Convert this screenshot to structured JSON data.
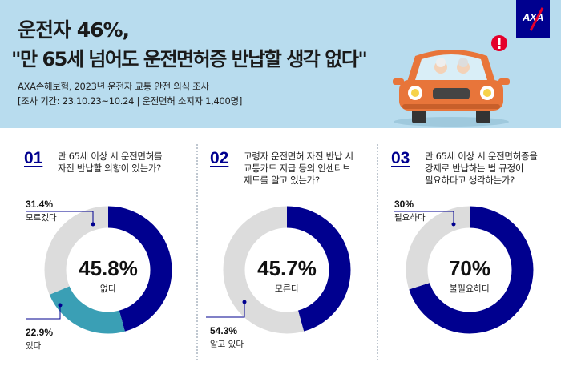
{
  "header": {
    "title_line1": "운전자 46%,",
    "title_line2": "\"만 65세 넘어도 운전면허증 반납할 생각 없다\"",
    "source": "AXA손해보험, 2023년 운전자 교통 안전 의식 조사",
    "period": "[조사 기간: 23.10.23~10.24 | 운전면허 소지자 1,400명]",
    "logo_text": "AXA",
    "brand_color": "#00008f"
  },
  "colors": {
    "primary": "#00008f",
    "secondary": "#3a9fb5",
    "gray": "#dcdcdc"
  },
  "questions": [
    {
      "num": "01",
      "text_lines": [
        "만 65세 이상 시 운전면허를",
        "자진 반납할 의향이 있는가?"
      ],
      "center_pct": "45.8%",
      "center_label": "없다",
      "callouts": [
        {
          "pct": "31.4%",
          "label": "모르겠다"
        },
        {
          "pct": "22.9%",
          "label": "있다"
        }
      ]
    },
    {
      "num": "02",
      "text_lines": [
        "고령자 운전면허 자진 반납 시",
        "교통카드 지급 등의 인센티브",
        "제도를 알고 있는가?"
      ],
      "center_pct": "45.7%",
      "center_label": "모른다",
      "callouts": [
        {
          "pct": "54.3%",
          "label": "알고 있다"
        }
      ]
    },
    {
      "num": "03",
      "text_lines": [
        "만 65세 이상 시 운전면허증을",
        "강제로 반납하는 법 규정이",
        "필요하다고 생각하는가?"
      ],
      "center_pct": "70%",
      "center_label": "불필요하다",
      "callouts": [
        {
          "pct": "30%",
          "label": "필요하다"
        }
      ]
    }
  ],
  "chart_data": [
    {
      "type": "pie",
      "title": "만 65세 이상 시 운전면허를 자진 반납할 의향이 있는가?",
      "categories": [
        "없다",
        "있다",
        "모르겠다"
      ],
      "values": [
        45.8,
        22.9,
        31.4
      ],
      "colors": [
        "#00008f",
        "#3a9fb5",
        "#dcdcdc"
      ]
    },
    {
      "type": "pie",
      "title": "고령자 운전면허 자진 반납 시 교통카드 지급 등의 인센티브 제도를 알고 있는가?",
      "categories": [
        "모른다",
        "알고 있다"
      ],
      "values": [
        45.7,
        54.3
      ],
      "colors": [
        "#00008f",
        "#dcdcdc"
      ]
    },
    {
      "type": "pie",
      "title": "만 65세 이상 시 운전면허증을 강제로 반납하는 법 규정이 필요하다고 생각하는가?",
      "categories": [
        "불필요하다",
        "필요하다"
      ],
      "values": [
        70,
        30
      ],
      "colors": [
        "#00008f",
        "#dcdcdc"
      ]
    }
  ]
}
